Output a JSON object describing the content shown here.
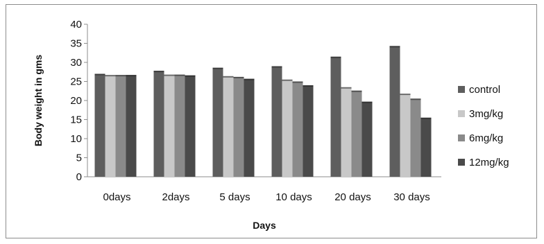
{
  "chart_data": {
    "type": "bar",
    "title": "",
    "xlabel": "Days",
    "ylabel": "Body weight in gms",
    "ylim": [
      0,
      40
    ],
    "yticks": [
      0,
      5,
      10,
      15,
      20,
      25,
      30,
      35,
      40
    ],
    "grid": false,
    "legend_position": "right",
    "categories": [
      "0days",
      "2days",
      "5 days",
      "10 days",
      "20 days",
      "30 days"
    ],
    "series": [
      {
        "name": "control",
        "color": "#5e5e5e",
        "values": [
          27.0,
          27.8,
          28.6,
          29.0,
          31.5,
          34.3
        ]
      },
      {
        "name": "3mg/kg",
        "color": "#c8c8c8",
        "values": [
          26.7,
          26.8,
          26.4,
          25.5,
          23.5,
          21.8
        ]
      },
      {
        "name": "6mg/kg",
        "color": "#8a8a8a",
        "values": [
          26.7,
          26.8,
          26.2,
          25.0,
          22.6,
          20.5
        ]
      },
      {
        "name": "12mg/kg",
        "color": "#4a4a4a",
        "values": [
          26.7,
          26.6,
          25.7,
          24.0,
          19.7,
          15.5
        ]
      }
    ]
  }
}
